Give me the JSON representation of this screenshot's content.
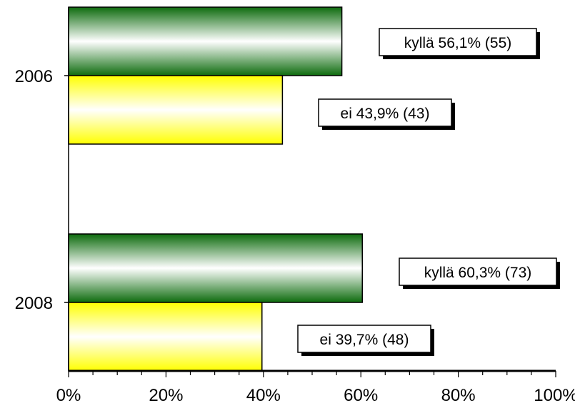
{
  "chart_data": {
    "type": "bar",
    "orientation": "horizontal",
    "categories": [
      "2006",
      "2008"
    ],
    "series": [
      {
        "values": [
          56.1,
          60.3
        ],
        "labels": [
          "kyllä 56,1% (55)",
          "kyllä 60,3% (73)"
        ],
        "color": "#1a8a1a"
      },
      {
        "values": [
          43.9,
          39.7
        ],
        "labels": [
          "ei 43,9% (43)",
          "ei 39,7% (48)"
        ],
        "color": "#ffff00"
      }
    ],
    "xlim": [
      0,
      100
    ],
    "x_ticks": [
      "0%",
      "20%",
      "40%",
      "60%",
      "80%",
      "100%"
    ],
    "grid": false,
    "legend": "none"
  }
}
